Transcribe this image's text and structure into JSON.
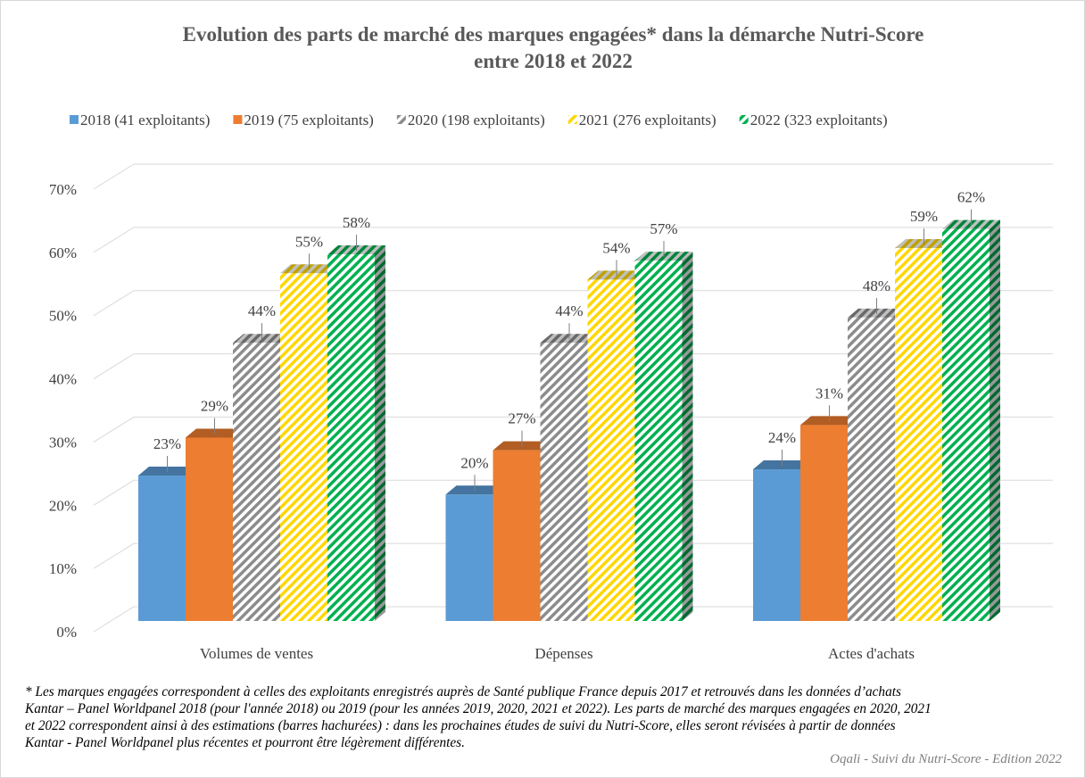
{
  "chart_data": {
    "type": "bar3d",
    "title": [
      "Evolution des parts de marché des marques engagées* dans la démarche Nutri-Score",
      "entre 2018 et 2022"
    ],
    "categories": [
      "Volumes de ventes",
      "Dépenses",
      "Actes d'achats"
    ],
    "series": [
      {
        "name": "2018 (41 exploitants)",
        "color": "#5b9bd5",
        "hatch": false,
        "values": [
          23,
          20,
          24
        ],
        "value_labels": [
          "23%",
          "20%",
          "24%"
        ]
      },
      {
        "name": "2019 (75 exploitants)",
        "color": "#ed7d31",
        "hatch": false,
        "values": [
          29,
          27,
          31
        ],
        "value_labels": [
          "29%",
          "27%",
          "31%"
        ]
      },
      {
        "name": "2020 (198 exploitants)",
        "color": "#8c8c8c",
        "hatch": true,
        "values": [
          44,
          44,
          48
        ],
        "value_labels": [
          "44%",
          "44%",
          "48%"
        ]
      },
      {
        "name": "2021 (276 exploitants)",
        "color": "#ffd700",
        "hatch": true,
        "values": [
          55,
          54,
          59
        ],
        "value_labels": [
          "55%",
          "54%",
          "59%"
        ]
      },
      {
        "name": "2022 (323 exploitants)",
        "color": "#00b050",
        "hatch": true,
        "values": [
          58,
          57,
          62
        ],
        "value_labels": [
          "58%",
          "57%",
          "62%"
        ]
      }
    ],
    "ylim": [
      0,
      70
    ],
    "yticks": [
      {
        "value": 0,
        "label": "0%"
      },
      {
        "value": 10,
        "label": "10%"
      },
      {
        "value": 20,
        "label": "20%"
      },
      {
        "value": 30,
        "label": "30%"
      },
      {
        "value": 40,
        "label": "40%"
      },
      {
        "value": 50,
        "label": "50%"
      },
      {
        "value": 60,
        "label": "60%"
      },
      {
        "value": 70,
        "label": "70%"
      }
    ],
    "grid": true,
    "legend": "top",
    "footnote": [
      "* Les marques engagées correspondent à celles des exploitants enregistrés auprès de Santé publique France depuis 2017 et retrouvés dans les données d’achats",
      "Kantar – Panel Worldpanel 2018 (pour l'année 2018) ou 2019 (pour les années 2019, 2020, 2021 et 2022). Les parts de marché des marques engagées en 2020, 2021",
      "et 2022 correspondent ainsi à des estimations (barres hachurées) : dans les prochaines études de suivi du Nutri-Score, elles seront révisées à partir de données",
      "Kantar - Panel Worldpanel plus récentes et pourront être légèrement différentes."
    ],
    "source": "Oqali - Suivi du Nutri-Score - Edition 2022"
  }
}
